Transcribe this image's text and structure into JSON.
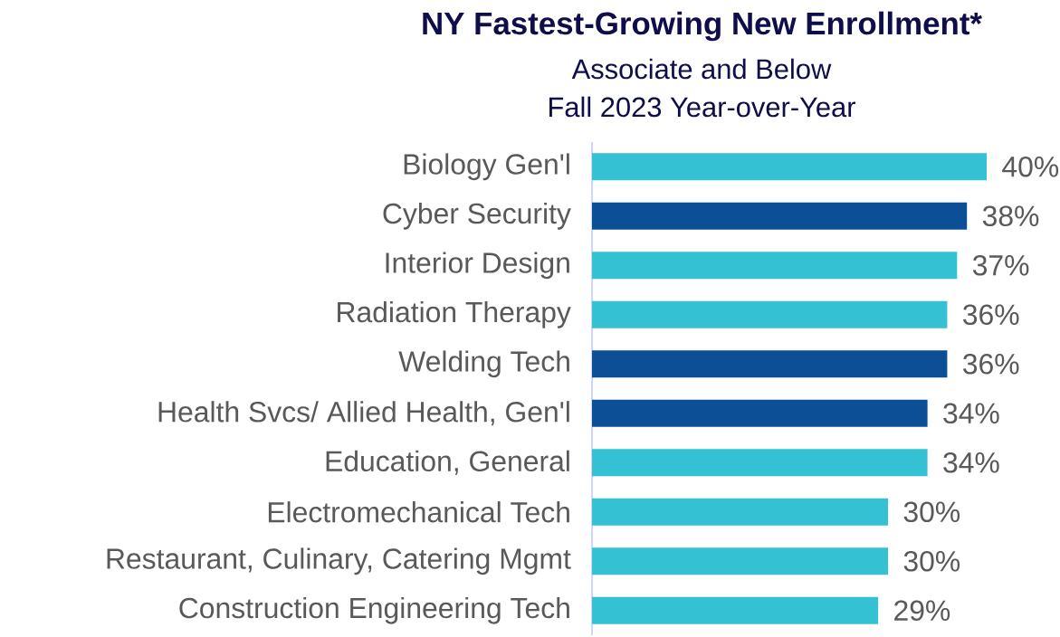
{
  "chart_data": {
    "type": "bar",
    "orientation": "horizontal",
    "title": "NY Fastest-Growing New Enrollment*",
    "subtitle": "Associate and Below",
    "annotations": [
      "Fall 2023 Year-over-Year"
    ],
    "categories": [
      "Biology Gen'l",
      "Cyber Security",
      "Interior Design",
      "Radiation Therapy",
      "Welding Tech",
      "Health Svcs/ Allied Health, Gen'l",
      "Education, General",
      "Electromechanical Tech",
      "Restaurant, Culinary,  Catering Mgmt",
      "Construction Engineering Tech"
    ],
    "values": [
      40,
      38,
      37,
      36,
      36,
      34,
      34,
      30,
      30,
      29
    ],
    "value_labels": [
      "40%",
      "38%",
      "37%",
      "36%",
      "36%",
      "34%",
      "34%",
      "30%",
      "30%",
      "29%"
    ],
    "colors": [
      "#33c1d3",
      "#0c4f96",
      "#33c1d3",
      "#33c1d3",
      "#0c4f96",
      "#0c4f96",
      "#33c1d3",
      "#33c1d3",
      "#33c1d3",
      "#33c1d3"
    ],
    "xlim": [
      0,
      40
    ],
    "tick_labels": "y"
  }
}
